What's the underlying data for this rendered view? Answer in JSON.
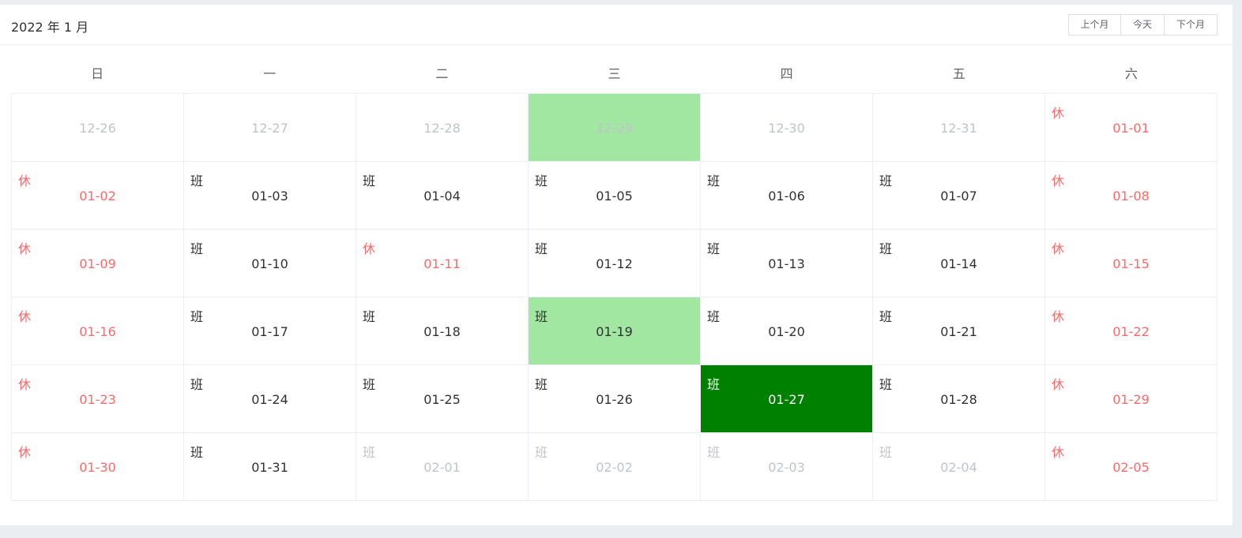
{
  "calendar": {
    "title": "2022 年 1 月",
    "buttons": {
      "prev": "上个月",
      "today": "今天",
      "next": "下个月"
    },
    "weekdays": [
      "日",
      "一",
      "二",
      "三",
      "四",
      "五",
      "六"
    ],
    "colors": {
      "holiday": "#f56c6c",
      "highlight": "#a1e6a1",
      "selected": "#008000",
      "muted": "#c0c4cc"
    },
    "weeks": [
      [
        {
          "date": "12-26",
          "tag": "",
          "type": "other"
        },
        {
          "date": "12-27",
          "tag": "",
          "type": "other"
        },
        {
          "date": "12-28",
          "tag": "",
          "type": "other"
        },
        {
          "date": "12-29",
          "tag": "",
          "type": "other",
          "state": "light"
        },
        {
          "date": "12-30",
          "tag": "",
          "type": "other"
        },
        {
          "date": "12-31",
          "tag": "",
          "type": "other"
        },
        {
          "date": "01-01",
          "tag": "休",
          "type": "holiday"
        }
      ],
      [
        {
          "date": "01-02",
          "tag": "休",
          "type": "holiday"
        },
        {
          "date": "01-03",
          "tag": "班",
          "type": "work"
        },
        {
          "date": "01-04",
          "tag": "班",
          "type": "work"
        },
        {
          "date": "01-05",
          "tag": "班",
          "type": "work"
        },
        {
          "date": "01-06",
          "tag": "班",
          "type": "work"
        },
        {
          "date": "01-07",
          "tag": "班",
          "type": "work"
        },
        {
          "date": "01-08",
          "tag": "休",
          "type": "holiday"
        }
      ],
      [
        {
          "date": "01-09",
          "tag": "休",
          "type": "holiday"
        },
        {
          "date": "01-10",
          "tag": "班",
          "type": "work"
        },
        {
          "date": "01-11",
          "tag": "休",
          "type": "holiday"
        },
        {
          "date": "01-12",
          "tag": "班",
          "type": "work"
        },
        {
          "date": "01-13",
          "tag": "班",
          "type": "work"
        },
        {
          "date": "01-14",
          "tag": "班",
          "type": "work"
        },
        {
          "date": "01-15",
          "tag": "休",
          "type": "holiday"
        }
      ],
      [
        {
          "date": "01-16",
          "tag": "休",
          "type": "holiday"
        },
        {
          "date": "01-17",
          "tag": "班",
          "type": "work"
        },
        {
          "date": "01-18",
          "tag": "班",
          "type": "work"
        },
        {
          "date": "01-19",
          "tag": "班",
          "type": "work",
          "state": "light"
        },
        {
          "date": "01-20",
          "tag": "班",
          "type": "work"
        },
        {
          "date": "01-21",
          "tag": "班",
          "type": "work"
        },
        {
          "date": "01-22",
          "tag": "休",
          "type": "holiday"
        }
      ],
      [
        {
          "date": "01-23",
          "tag": "休",
          "type": "holiday"
        },
        {
          "date": "01-24",
          "tag": "班",
          "type": "work"
        },
        {
          "date": "01-25",
          "tag": "班",
          "type": "work"
        },
        {
          "date": "01-26",
          "tag": "班",
          "type": "work"
        },
        {
          "date": "01-27",
          "tag": "班",
          "type": "work",
          "state": "selected"
        },
        {
          "date": "01-28",
          "tag": "班",
          "type": "work"
        },
        {
          "date": "01-29",
          "tag": "休",
          "type": "holiday"
        }
      ],
      [
        {
          "date": "01-30",
          "tag": "休",
          "type": "holiday"
        },
        {
          "date": "01-31",
          "tag": "班",
          "type": "work"
        },
        {
          "date": "02-01",
          "tag": "班",
          "type": "other"
        },
        {
          "date": "02-02",
          "tag": "班",
          "type": "other"
        },
        {
          "date": "02-03",
          "tag": "班",
          "type": "other"
        },
        {
          "date": "02-04",
          "tag": "班",
          "type": "other"
        },
        {
          "date": "02-05",
          "tag": "休",
          "type": "other holiday"
        }
      ]
    ]
  }
}
